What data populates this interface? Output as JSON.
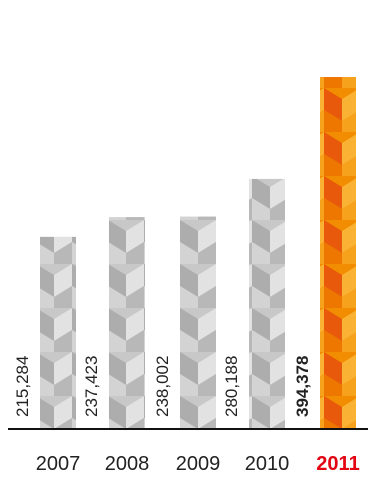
{
  "chart_data": {
    "type": "bar",
    "title": "",
    "xlabel": "",
    "ylabel": "",
    "categories": [
      "2007",
      "2008",
      "2009",
      "2010",
      "2011"
    ],
    "values": [
      215284,
      237423,
      238002,
      280188,
      394378
    ],
    "value_labels": [
      "215,284",
      "237,423",
      "238,002",
      "280,188",
      "394,378"
    ],
    "ylim": [
      0,
      394378
    ],
    "grid": false,
    "legend": "none",
    "highlight_index": 4,
    "colors": {
      "bar": "#c8c8c8",
      "bar_light": "#e2e2e2",
      "bar_dark": "#adadad",
      "highlight": "#f28c00",
      "highlight_light": "#f9b233",
      "highlight_dark": "#e8590c",
      "highlight_text": "#e30613",
      "baseline": "#111111",
      "text": "#222222"
    }
  }
}
